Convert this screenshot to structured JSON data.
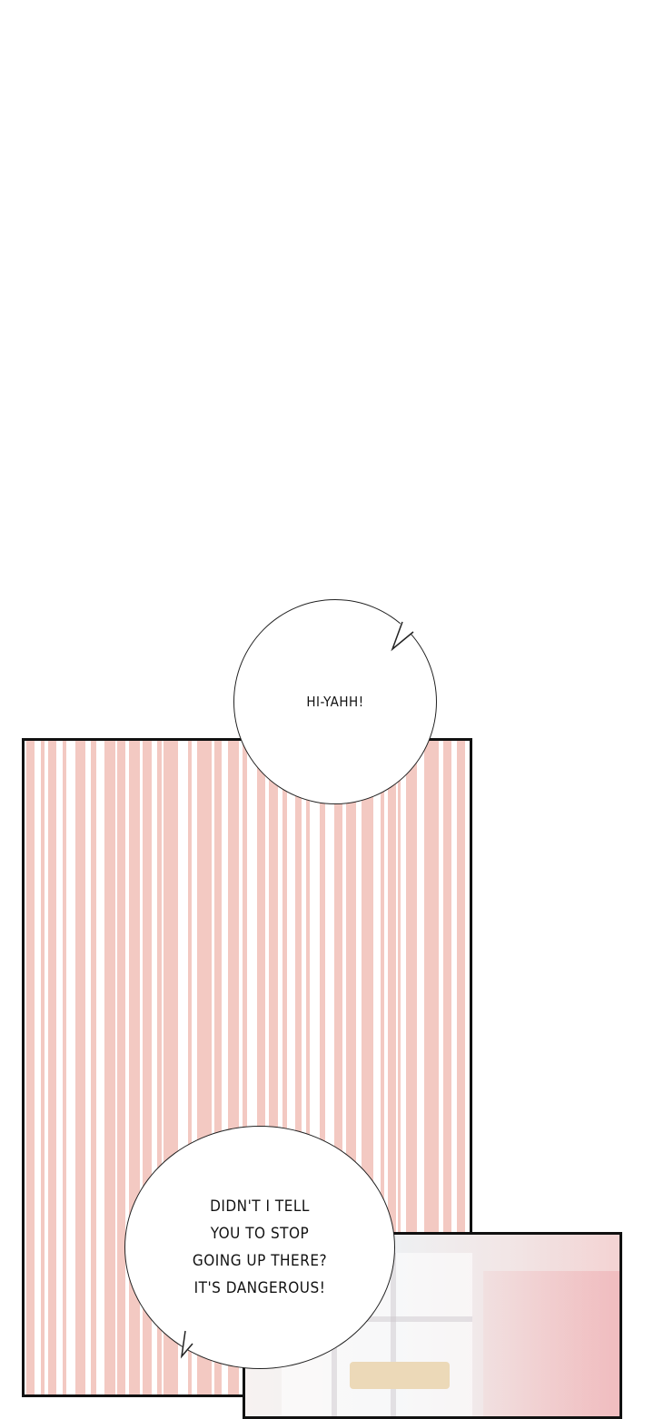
{
  "panels": [
    {
      "background": "pink-vertical-stripes",
      "stripe_color": "#f3c9c2"
    },
    {
      "background": "window-with-curtain"
    }
  ],
  "bubbles": [
    {
      "text": "HI-YAHH!"
    },
    {
      "lines": [
        "DIDN'T I TELL",
        "YOU TO STOP",
        "GOING UP THERE?",
        "IT'S DANGEROUS!"
      ]
    }
  ]
}
